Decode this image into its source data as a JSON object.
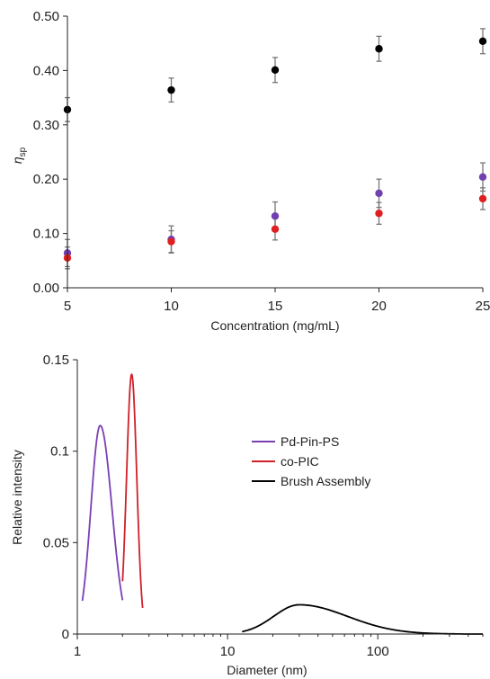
{
  "chart_data": [
    {
      "type": "scatter",
      "title": "",
      "xlabel": "Concentration (mg/mL)",
      "ylabel_main": "η",
      "ylabel_sub": "sp",
      "xlim": [
        5,
        25
      ],
      "ylim": [
        0,
        0.5
      ],
      "xticks": [
        "5",
        "10",
        "15",
        "20",
        "25"
      ],
      "yticks": [
        "0.00",
        "0.10",
        "0.20",
        "0.30",
        "0.40",
        "0.50"
      ],
      "grid": false,
      "legend": null,
      "series": [
        {
          "color": "#000000",
          "points": [
            {
              "x": 5,
              "y": 0.328,
              "err": 0.022
            },
            {
              "x": 10,
              "y": 0.364,
              "err": 0.022
            },
            {
              "x": 15,
              "y": 0.401,
              "err": 0.023
            },
            {
              "x": 20,
              "y": 0.44,
              "err": 0.023
            },
            {
              "x": 25,
              "y": 0.454,
              "err": 0.023
            }
          ]
        },
        {
          "color": "#7040b0",
          "points": [
            {
              "x": 5,
              "y": 0.064,
              "err": 0.025
            },
            {
              "x": 10,
              "y": 0.089,
              "err": 0.025
            },
            {
              "x": 15,
              "y": 0.132,
              "err": 0.026
            },
            {
              "x": 20,
              "y": 0.174,
              "err": 0.026
            },
            {
              "x": 25,
              "y": 0.204,
              "err": 0.026
            }
          ]
        },
        {
          "color": "#e02020",
          "points": [
            {
              "x": 5,
              "y": 0.055,
              "err": 0.02
            },
            {
              "x": 10,
              "y": 0.085,
              "err": 0.02
            },
            {
              "x": 15,
              "y": 0.108,
              "err": 0.02
            },
            {
              "x": 20,
              "y": 0.137,
              "err": 0.02
            },
            {
              "x": 25,
              "y": 0.164,
              "err": 0.02
            }
          ]
        }
      ]
    },
    {
      "type": "line",
      "title": "",
      "xlabel": "Diameter (nm)",
      "ylabel": "Relative intensity",
      "xscale": "log",
      "xlim": [
        1,
        500
      ],
      "ylim": [
        0,
        0.15
      ],
      "xticks": [
        "1",
        "10",
        "100"
      ],
      "yticks": [
        "0",
        "0.05",
        "0.1",
        "0.15"
      ],
      "grid": false,
      "legend": "top-right",
      "series": [
        {
          "name": "Pd-Pin-PS",
          "color": "#7a3fb5",
          "peak_x": 1.42,
          "peak_y": 0.114,
          "rise_width": 0.062,
          "fall_width": 0.078,
          "x_range": [
            1.08,
            2.0
          ]
        },
        {
          "name": "co-PIC",
          "color": "#d0202a",
          "peak_x": 2.3,
          "peak_y": 0.142,
          "rise_width": 0.034,
          "fall_width": 0.034,
          "x_range": [
            2.0,
            2.72
          ]
        },
        {
          "name": "Brush Assembly",
          "color": "#000000",
          "peak_x": 30,
          "peak_y": 0.016,
          "rise_width": 0.17,
          "fall_width": 0.32,
          "x_range": [
            12.5,
            500
          ]
        }
      ]
    }
  ]
}
